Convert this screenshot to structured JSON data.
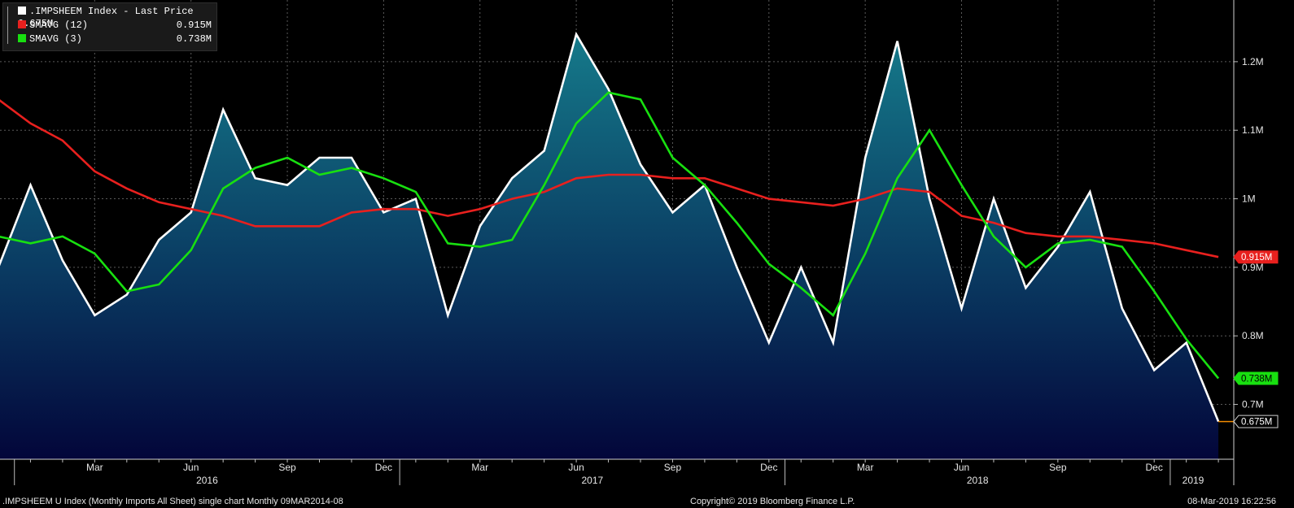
{
  "chart_data": {
    "type": "line",
    "series": [
      {
        "name": ".IMPSHEEM Index - Last Price",
        "last_label": "0.675M",
        "color": "#ffffff",
        "fill": true,
        "values": [
          0.9,
          1.02,
          0.91,
          0.83,
          0.86,
          0.94,
          0.98,
          1.13,
          1.03,
          1.02,
          1.06,
          1.06,
          0.98,
          1.0,
          0.83,
          0.96,
          1.03,
          1.07,
          1.24,
          1.16,
          1.05,
          0.98,
          1.02,
          0.9,
          0.79,
          0.9,
          0.79,
          1.06,
          1.23,
          1.0,
          0.84,
          1.0,
          0.87,
          0.93,
          1.01,
          0.84,
          0.75,
          0.79,
          0.675
        ]
      },
      {
        "name": "SMAVG (12)",
        "last_label": "0.915M",
        "color": "#e8201e",
        "values": [
          1.145,
          1.11,
          1.085,
          1.04,
          1.015,
          0.995,
          0.985,
          0.975,
          0.96,
          0.96,
          0.96,
          0.98,
          0.985,
          0.985,
          0.975,
          0.985,
          1.0,
          1.01,
          1.03,
          1.035,
          1.035,
          1.03,
          1.03,
          1.015,
          1.0,
          0.995,
          0.99,
          1.0,
          1.015,
          1.01,
          0.975,
          0.965,
          0.95,
          0.945,
          0.945,
          0.94,
          0.935,
          0.925,
          0.915
        ]
      },
      {
        "name": "SMAVG (3)",
        "last_label": "0.738M",
        "color": "#18e010",
        "values": [
          0.945,
          0.935,
          0.945,
          0.92,
          0.865,
          0.875,
          0.925,
          1.015,
          1.045,
          1.06,
          1.035,
          1.045,
          1.03,
          1.01,
          0.935,
          0.93,
          0.94,
          1.02,
          1.11,
          1.155,
          1.145,
          1.06,
          1.02,
          0.965,
          0.905,
          0.87,
          0.83,
          0.92,
          1.03,
          1.1,
          1.02,
          0.945,
          0.9,
          0.935,
          0.94,
          0.93,
          0.865,
          0.795,
          0.738
        ]
      }
    ],
    "x": {
      "start_month": "2015-12",
      "month_ticks": [
        "Mar",
        "Jun",
        "Sep",
        "Dec",
        "Mar",
        "Jun",
        "Sep",
        "Dec",
        "Mar",
        "Jun",
        "Sep",
        "Dec"
      ],
      "year_labels": [
        "2016",
        "2017",
        "2018",
        "2019"
      ]
    },
    "y": {
      "ylim": [
        0.62,
        1.29
      ],
      "ticks": [
        0.7,
        0.8,
        0.9,
        1.0,
        1.1,
        1.2
      ],
      "tick_labels": [
        "0.7M",
        "0.8M",
        "0.9M",
        "1M",
        "1.1M",
        "1.2M"
      ]
    },
    "grid": true,
    "legend_position": "top-left"
  },
  "footer": {
    "left": ".IMPSHEEM U Index (Monthly Imports All Sheet) single chart  Monthly 09MAR2014-08",
    "center": "Copyright© 2019 Bloomberg Finance L.P.",
    "right": "08-Mar-2019 16:22:56"
  }
}
